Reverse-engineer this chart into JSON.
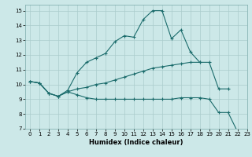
{
  "xlabel": "Humidex (Indice chaleur)",
  "xlim": [
    -0.5,
    23
  ],
  "ylim": [
    7,
    15.4
  ],
  "xticks": [
    0,
    1,
    2,
    3,
    4,
    5,
    6,
    7,
    8,
    9,
    10,
    11,
    12,
    13,
    14,
    15,
    16,
    17,
    18,
    19,
    20,
    21,
    22,
    23
  ],
  "yticks": [
    7,
    8,
    9,
    10,
    11,
    12,
    13,
    14,
    15
  ],
  "bg_color": "#cce8e8",
  "grid_color": "#aacccc",
  "line_color": "#1a6b6b",
  "lines": [
    {
      "x": [
        0,
        1,
        2,
        3,
        4,
        5,
        6,
        7,
        8,
        9,
        10,
        11,
        12,
        13,
        14,
        15,
        16,
        17,
        18,
        19,
        20,
        21
      ],
      "y": [
        10.2,
        10.1,
        9.4,
        9.2,
        9.6,
        10.8,
        11.5,
        11.8,
        12.1,
        12.9,
        13.3,
        13.2,
        14.4,
        15.0,
        15.0,
        13.1,
        13.7,
        12.2,
        11.5,
        null,
        null,
        null
      ]
    },
    {
      "x": [
        0,
        1,
        2,
        3,
        4,
        5,
        6,
        7,
        8,
        9,
        10,
        11,
        12,
        13,
        14,
        15,
        16,
        17,
        18,
        19,
        20,
        21,
        22
      ],
      "y": [
        10.2,
        10.1,
        9.4,
        9.2,
        9.5,
        9.7,
        9.8,
        10.0,
        10.1,
        10.3,
        10.5,
        10.7,
        10.9,
        11.1,
        11.2,
        11.3,
        11.4,
        11.5,
        11.5,
        11.5,
        9.7,
        9.7,
        null
      ]
    },
    {
      "x": [
        0,
        1,
        2,
        3,
        4,
        5,
        6,
        7,
        8,
        9,
        10,
        11,
        12,
        13,
        14,
        15,
        16,
        17,
        18,
        19,
        20,
        21,
        22
      ],
      "y": [
        10.2,
        10.1,
        9.4,
        9.2,
        9.5,
        9.3,
        9.1,
        9.0,
        9.0,
        9.0,
        9.0,
        9.0,
        9.0,
        9.0,
        9.0,
        9.0,
        9.1,
        9.1,
        9.1,
        9.0,
        8.1,
        8.1,
        6.8
      ]
    }
  ]
}
